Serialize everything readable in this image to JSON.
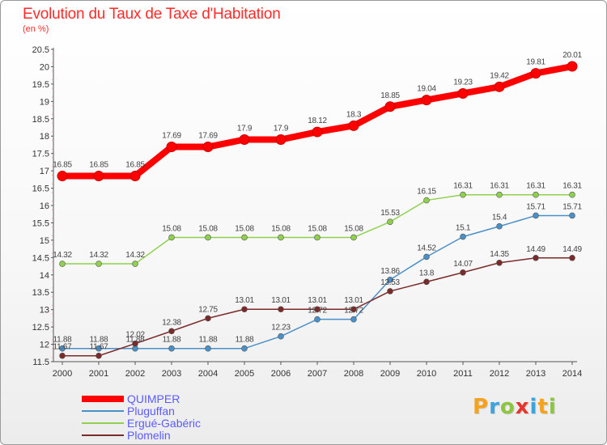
{
  "title": "Evolution du Taux de Taxe d'Habitation",
  "subtitle": "(en %)",
  "logo": {
    "letters": [
      "P",
      "r",
      "o",
      "x",
      "i",
      "t",
      "i"
    ],
    "colors": [
      "#f7a21b",
      "#3aa4dc",
      "#8cc63f",
      "#e8352b",
      "#3aa4dc",
      "#f7a21b",
      "#8cc63f"
    ]
  },
  "chart_data": {
    "type": "line",
    "title": "Evolution du Taux de Taxe d'Habitation",
    "ylabel": "(en %)",
    "xlabel": "",
    "x": [
      "2000",
      "2001",
      "2002",
      "2003",
      "2004",
      "2005",
      "2006",
      "2007",
      "2008",
      "2009",
      "2010",
      "2011",
      "2012",
      "2013",
      "2014"
    ],
    "ylim": [
      11.5,
      20.5
    ],
    "yticks": [
      "11.5",
      "12",
      "12.5",
      "13",
      "13.5",
      "14",
      "14.5",
      "15",
      "15.5",
      "16",
      "16.5",
      "17",
      "17.5",
      "18",
      "18.5",
      "19",
      "19.5",
      "20",
      "20.5"
    ],
    "grid": false,
    "legend_position": "bottom-left",
    "series": [
      {
        "name": "QUIMPER",
        "color": "#ff0000",
        "thick": true,
        "values": [
          16.85,
          16.85,
          16.85,
          17.69,
          17.69,
          17.9,
          17.9,
          18.12,
          18.3,
          18.85,
          19.04,
          19.23,
          19.42,
          19.81,
          20.01
        ],
        "labels": [
          "16.85",
          "16.85",
          "16.85",
          "17.69",
          "17.69",
          "17.9",
          "17.9",
          "18.12",
          "18.3",
          "18.85",
          "19.04",
          "19.23",
          "19.42",
          "19.81",
          "20.01"
        ]
      },
      {
        "name": "Pluguffan",
        "color": "#4a90c8",
        "thick": false,
        "values": [
          11.88,
          11.88,
          11.88,
          11.88,
          11.88,
          11.88,
          12.23,
          12.72,
          12.72,
          13.86,
          14.52,
          15.1,
          15.4,
          15.71,
          15.71
        ],
        "labels": [
          "11.88",
          "11.88",
          "11.88",
          "11.88",
          "11.88",
          "11.88",
          "12.23",
          "12.72",
          "12.72",
          "13.86",
          "14.52",
          "15.1",
          "15.4",
          "15.71",
          "15.71"
        ]
      },
      {
        "name": "Ergué-Gabéric",
        "color": "#8fd14f",
        "thick": false,
        "values": [
          14.32,
          14.32,
          14.32,
          15.08,
          15.08,
          15.08,
          15.08,
          15.08,
          15.08,
          15.53,
          16.15,
          16.31,
          16.31,
          16.31,
          16.31
        ],
        "labels": [
          "14.32",
          "14.32",
          "14.32",
          "15.08",
          "15.08",
          "15.08",
          "15.08",
          "15.08",
          "15.08",
          "15.53",
          "16.15",
          "16.31",
          "16.31",
          "16.31",
          "16.31"
        ]
      },
      {
        "name": "Plomelin",
        "color": "#7b2a2a",
        "thick": false,
        "values": [
          11.67,
          11.67,
          12.02,
          12.38,
          12.75,
          13.01,
          13.01,
          13.01,
          13.01,
          13.53,
          13.8,
          14.07,
          14.35,
          14.49,
          14.49
        ],
        "labels": [
          "11.67",
          "11.67",
          "12.02",
          "12.38",
          "12.75",
          "13.01",
          "13.01",
          "13.01",
          "13.01",
          "13.53",
          "13.8",
          "14.07",
          "14.35",
          "14.49",
          "14.49"
        ]
      }
    ]
  }
}
